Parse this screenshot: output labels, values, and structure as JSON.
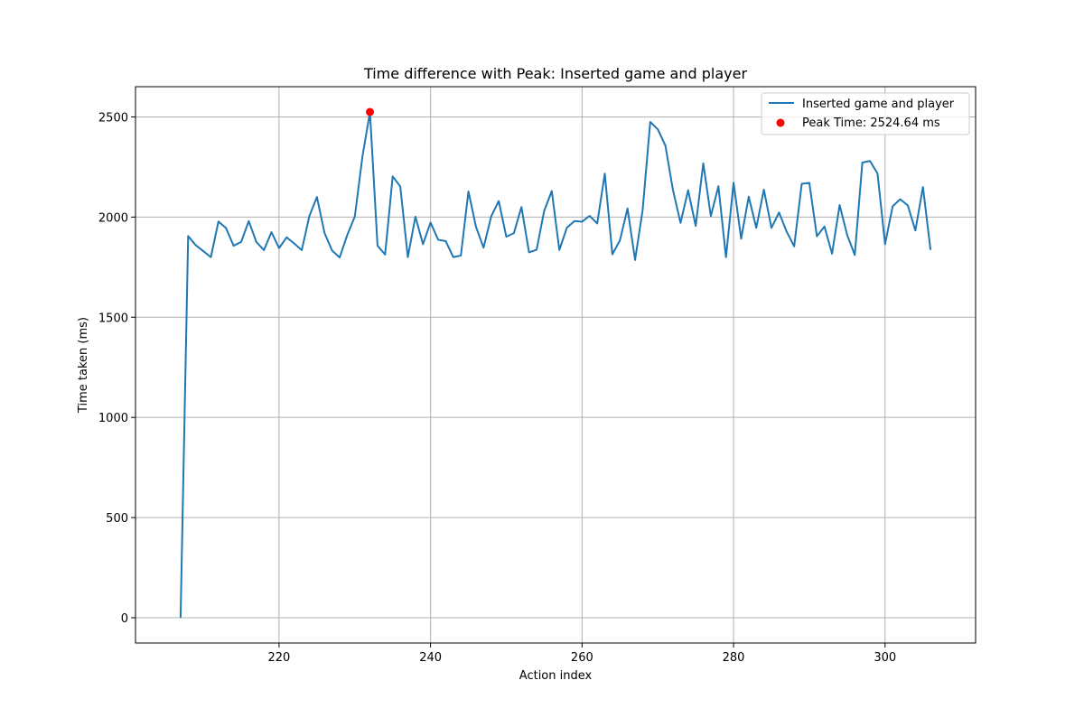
{
  "chart_data": {
    "type": "line",
    "title": "Time difference with Peak: Inserted game and player",
    "xlabel": "Action index",
    "ylabel": "Time taken (ms)",
    "xlim": [
      201.05,
      311.95
    ],
    "ylim": [
      -126.2,
      2650.8
    ],
    "xticks": [
      220,
      240,
      260,
      280,
      300
    ],
    "yticks": [
      0,
      500,
      1000,
      1500,
      2000,
      2500
    ],
    "grid": true,
    "legend_position": "upper right",
    "series": [
      {
        "name": "Inserted game and player",
        "color": "#1f77b4",
        "x": [
          207,
          208,
          209,
          210,
          211,
          212,
          213,
          214,
          215,
          216,
          217,
          218,
          219,
          220,
          221,
          222,
          223,
          224,
          225,
          226,
          227,
          228,
          229,
          230,
          231,
          232,
          233,
          234,
          235,
          236,
          237,
          238,
          239,
          240,
          241,
          242,
          243,
          244,
          245,
          246,
          247,
          248,
          249,
          250,
          251,
          252,
          253,
          254,
          255,
          256,
          257,
          258,
          259,
          260,
          261,
          262,
          263,
          264,
          265,
          266,
          267,
          268,
          269,
          270,
          271,
          272,
          273,
          274,
          275,
          276,
          277,
          278,
          279,
          280,
          281,
          282,
          283,
          284,
          285,
          286,
          287,
          288,
          289,
          290,
          291,
          292,
          293,
          294,
          295,
          296,
          297,
          298,
          299,
          300,
          301,
          302,
          303,
          304,
          305,
          306
        ],
        "y": [
          0,
          1905,
          1860,
          1830,
          1800,
          1978,
          1945,
          1857,
          1876,
          1980,
          1876,
          1835,
          1925,
          1845,
          1899,
          1868,
          1835,
          2005,
          2100,
          1921,
          1833,
          1798,
          1910,
          2003,
          2300,
          2524.64,
          1857,
          1813,
          2203,
          2153,
          1800,
          2002,
          1865,
          1973,
          1887,
          1880,
          1800,
          1808,
          2128,
          1951,
          1847,
          2003,
          2080,
          1902,
          1920,
          2050,
          1824,
          1837,
          2031,
          2130,
          1836,
          1947,
          1980,
          1977,
          2006,
          1968,
          2217,
          1814,
          1884,
          2043,
          1786,
          2036,
          2475,
          2438,
          2357,
          2135,
          1971,
          2134,
          1956,
          2268,
          2005,
          2154,
          1800,
          2172,
          1892,
          2102,
          1946,
          2137,
          1946,
          2023,
          1928,
          1854,
          2166,
          2171,
          1904,
          1953,
          1817,
          2060,
          1910,
          1811,
          2272,
          2280,
          2218,
          1865,
          2054,
          2089,
          2058,
          1933,
          2150,
          1836
        ]
      },
      {
        "name": "Peak Time: 2524.64 ms",
        "type": "scatter",
        "color": "#ff0000",
        "x": [
          232
        ],
        "y": [
          2524.64
        ]
      }
    ]
  }
}
